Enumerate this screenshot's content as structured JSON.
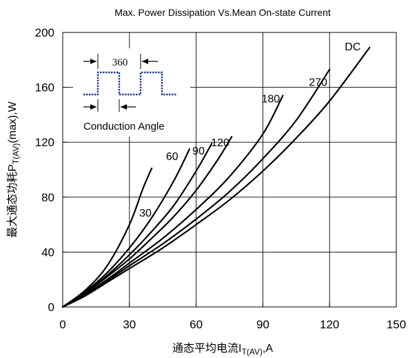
{
  "chart_data": {
    "type": "line",
    "title": "Max. Power Dissipation Vs.Mean On-state Current",
    "xlabel": {
      "main": "通态平均电流I",
      "sub": "T(AV)",
      "unit": ",A"
    },
    "ylabel": {
      "main": "最大通态功耗P",
      "sub": "T(AV)",
      "unit": "(max),W"
    },
    "xlim": [
      0,
      150
    ],
    "ylim": [
      0,
      200
    ],
    "xticks": [
      0,
      30,
      60,
      90,
      120,
      150
    ],
    "yticks": [
      0,
      40,
      80,
      120,
      160,
      200
    ],
    "grid": true,
    "series": [
      {
        "name": "30",
        "x": [
          0,
          10,
          20,
          30,
          36,
          40
        ],
        "y": [
          0,
          12,
          30,
          60,
          86,
          101
        ]
      },
      {
        "name": "60",
        "x": [
          0,
          10,
          20,
          30,
          40,
          50,
          57
        ],
        "y": [
          0,
          11,
          25,
          43,
          65,
          92,
          115
        ]
      },
      {
        "name": "90",
        "x": [
          0,
          10,
          20,
          30,
          40,
          50,
          60,
          67
        ],
        "y": [
          0,
          10,
          23,
          38,
          55,
          74,
          99,
          119
        ]
      },
      {
        "name": "120",
        "x": [
          0,
          10,
          20,
          30,
          40,
          50,
          60,
          70,
          76
        ],
        "y": [
          0,
          10,
          22,
          35,
          50,
          66,
          85,
          108,
          124
        ]
      },
      {
        "name": "180",
        "x": [
          0,
          10,
          20,
          30,
          45,
          60,
          75,
          90,
          99
        ],
        "y": [
          0,
          9,
          20,
          32,
          50,
          71,
          95,
          126,
          154
        ]
      },
      {
        "name": "270",
        "x": [
          0,
          10,
          20,
          30,
          45,
          60,
          75,
          90,
          105,
          120
        ],
        "y": [
          0,
          9,
          19,
          30,
          46,
          64,
          84,
          108,
          136,
          173
        ]
      },
      {
        "name": "DC",
        "x": [
          0,
          10,
          20,
          30,
          45,
          60,
          75,
          90,
          105,
          120,
          138
        ],
        "y": [
          0,
          8,
          18,
          28,
          43,
          60,
          78,
          99,
          123,
          150,
          189
        ]
      }
    ],
    "annotations": {
      "inset_period": "360",
      "inset_caption": "Conduction Angle"
    }
  }
}
